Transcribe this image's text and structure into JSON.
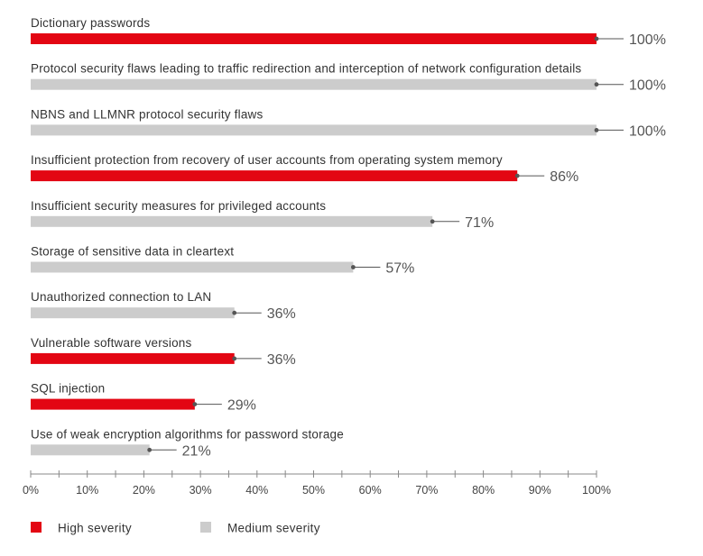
{
  "chart_data": {
    "type": "bar",
    "orientation": "horizontal",
    "title": "",
    "xlabel": "",
    "ylabel": "",
    "xlim": [
      0,
      100
    ],
    "grid": false,
    "legend_position": "bottom-left",
    "categories": [
      "Dictionary passwords",
      "Protocol security flaws leading to traffic redirection and interception of network configuration details",
      "NBNS and LLMNR protocol security flaws",
      "Insufficient protection from recovery of user accounts from operating system memory",
      "Insufficient security measures for privileged accounts",
      "Storage of sensitive data in cleartext",
      "Unauthorized connection to LAN",
      "Vulnerable software versions",
      "SQL injection",
      "Use of weak encryption algorithms for password storage"
    ],
    "values": [
      100,
      100,
      100,
      86,
      71,
      57,
      36,
      36,
      29,
      21
    ],
    "value_labels": [
      "100%",
      "100%",
      "100%",
      "86%",
      "71%",
      "57%",
      "36%",
      "36%",
      "29%",
      "21%"
    ],
    "severity": [
      "high",
      "medium",
      "medium",
      "high",
      "medium",
      "medium",
      "medium",
      "high",
      "high",
      "medium"
    ],
    "x_ticks": [
      "0%",
      "10%",
      "20%",
      "30%",
      "40%",
      "50%",
      "60%",
      "70%",
      "80%",
      "90%",
      "100%"
    ],
    "legend": [
      {
        "key": "high",
        "label": "High severity",
        "color": "#e30613"
      },
      {
        "key": "medium",
        "label": "Medium severity",
        "color": "#cccccc"
      }
    ],
    "colors": {
      "high": "#e30613",
      "medium": "#cccccc",
      "leader": "#555555",
      "axis": "#888888"
    }
  }
}
